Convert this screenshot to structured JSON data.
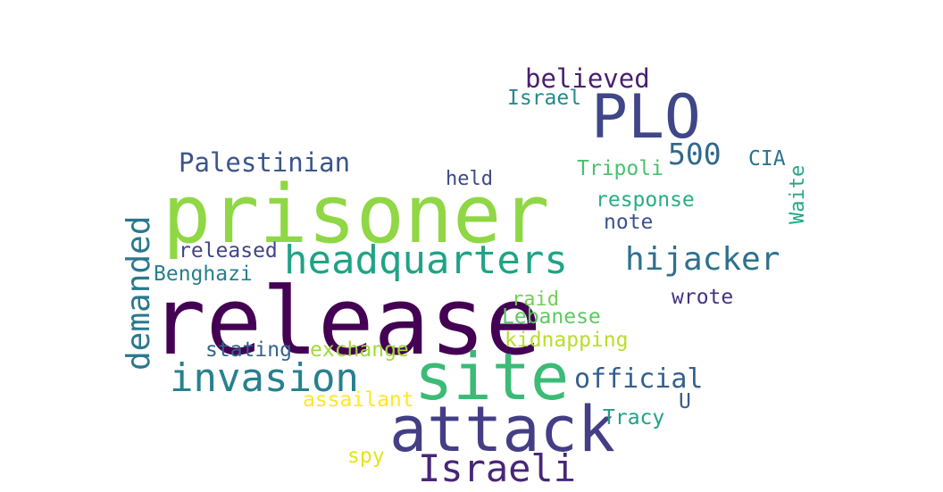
{
  "words": [
    {
      "text": "release",
      "color": "#440154"
    },
    {
      "text": "prisoner",
      "color": "#8fd744"
    },
    {
      "text": "attack",
      "color": "#433e85"
    },
    {
      "text": "site",
      "color": "#3bbb75"
    },
    {
      "text": "PLO",
      "color": "#3f4788"
    },
    {
      "text": "headquarters",
      "color": "#20a386"
    },
    {
      "text": "invasion",
      "color": "#26818e"
    },
    {
      "text": "Israeli",
      "color": "#482677"
    },
    {
      "text": "demanded",
      "color": "#2a788e"
    },
    {
      "text": "hijacker",
      "color": "#2d708e"
    },
    {
      "text": "Palestinian",
      "color": "#39558c"
    },
    {
      "text": "official",
      "color": "#355f8d"
    },
    {
      "text": "believed",
      "color": "#481f70"
    },
    {
      "text": "500",
      "color": "#31688e"
    },
    {
      "text": "Israel",
      "color": "#238a8d"
    },
    {
      "text": "Tripoli",
      "color": "#4ac16d"
    },
    {
      "text": "CIA",
      "color": "#2c728e"
    },
    {
      "text": "Waite",
      "color": "#22a884"
    },
    {
      "text": "held",
      "color": "#3e4989"
    },
    {
      "text": "response",
      "color": "#28ae80"
    },
    {
      "text": "note",
      "color": "#3b528b"
    },
    {
      "text": "released",
      "color": "#414487"
    },
    {
      "text": "Benghazi",
      "color": "#277f8e"
    },
    {
      "text": "raid",
      "color": "#73d056"
    },
    {
      "text": "Lebanese",
      "color": "#5ec962"
    },
    {
      "text": "wrote",
      "color": "#46327e"
    },
    {
      "text": "kidnapping",
      "color": "#b8de29"
    },
    {
      "text": "stating",
      "color": "#33638d"
    },
    {
      "text": "exchange",
      "color": "#a0da39"
    },
    {
      "text": "assailant",
      "color": "#fde725"
    },
    {
      "text": "U",
      "color": "#375a8c"
    },
    {
      "text": "Tracy",
      "color": "#1fa088"
    },
    {
      "text": "spy",
      "color": "#e3e418"
    }
  ]
}
